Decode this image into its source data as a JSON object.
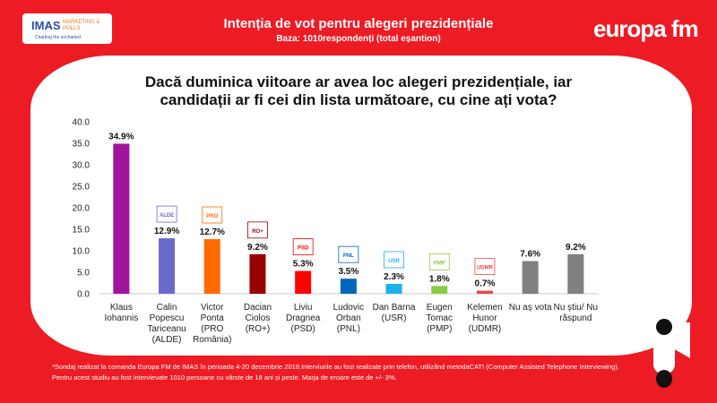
{
  "header": {
    "logo_text": "IMAS",
    "logo_sub": "MARKETING & POLLS",
    "logo_tag": "Charting the uncharted",
    "title": "Intenția de vot pentru alegeri prezidențiale",
    "subtitle": "Baza: 1010respondenți (total eșantion)",
    "brand": "europa fm"
  },
  "question": "Dacă duminica viitoare ar avea loc alegeri prezidențiale, iar candidații ar fi cei din lista următoare, cu cine ați vota?",
  "footnote": [
    "*Sondaj realizat la comanda Europa FM de IMAS în perioada 4-20 decembrie 2018.Interviurile au fost realizate prin telefon, utilizând metodaCATI (Computer Assisted Telephone Interviewing).",
    "Pentru acest studiu au fost intervievate 1010 persoane cu vârste de 18 ani și peste. Marja de eroare este de +/- 3%."
  ],
  "chart_data": {
    "type": "bar",
    "categories": [
      [
        "Klaus",
        "Iohannis"
      ],
      [
        "Calin",
        "Popescu",
        "Tariceanu",
        "(ALDE)"
      ],
      [
        "Victor",
        "Ponta",
        "(PRO",
        "România)"
      ],
      [
        "Dacian",
        "Ciolos",
        "(RO+)"
      ],
      [
        "Liviu",
        "Dragnea",
        "(PSD)"
      ],
      [
        "Ludovic",
        "Orban",
        "(PNL)"
      ],
      [
        "Dan Barna",
        "(USR)"
      ],
      [
        "Eugen",
        "Tomac",
        "(PMP)"
      ],
      [
        "Kelemen",
        "Hunor",
        "(UDMR)"
      ],
      [
        "Nu aș vota"
      ],
      [
        "Nu știu/ Nu",
        "răspund"
      ]
    ],
    "values": [
      34.9,
      12.9,
      12.7,
      9.2,
      5.3,
      3.5,
      2.3,
      1.8,
      0.7,
      7.6,
      9.2
    ],
    "data_labels": [
      "34.9%",
      "12.9%",
      "12.7%",
      "9.2%",
      "5.3%",
      "3.5%",
      "2.3%",
      "1.8%",
      "0.7%",
      "7.6%",
      "9.2%"
    ],
    "colors": [
      "#a0139a",
      "#6a6acc",
      "#ff6a00",
      "#990000",
      "#ff0000",
      "#0066bb",
      "#1ab0ee",
      "#88cc44",
      "#ee4444",
      "#808080",
      "#808080"
    ],
    "party_logos": [
      "",
      "ALDE",
      "PRO",
      "RO+",
      "PSD",
      "PNL",
      "USR",
      "PMP",
      "UDMR",
      "",
      ""
    ],
    "ylim": [
      0,
      40
    ],
    "yticks": [
      "0.0",
      "5.0",
      "10.0",
      "15.0",
      "20.0",
      "25.0",
      "30.0",
      "35.0",
      "40.0"
    ],
    "grid": false
  }
}
